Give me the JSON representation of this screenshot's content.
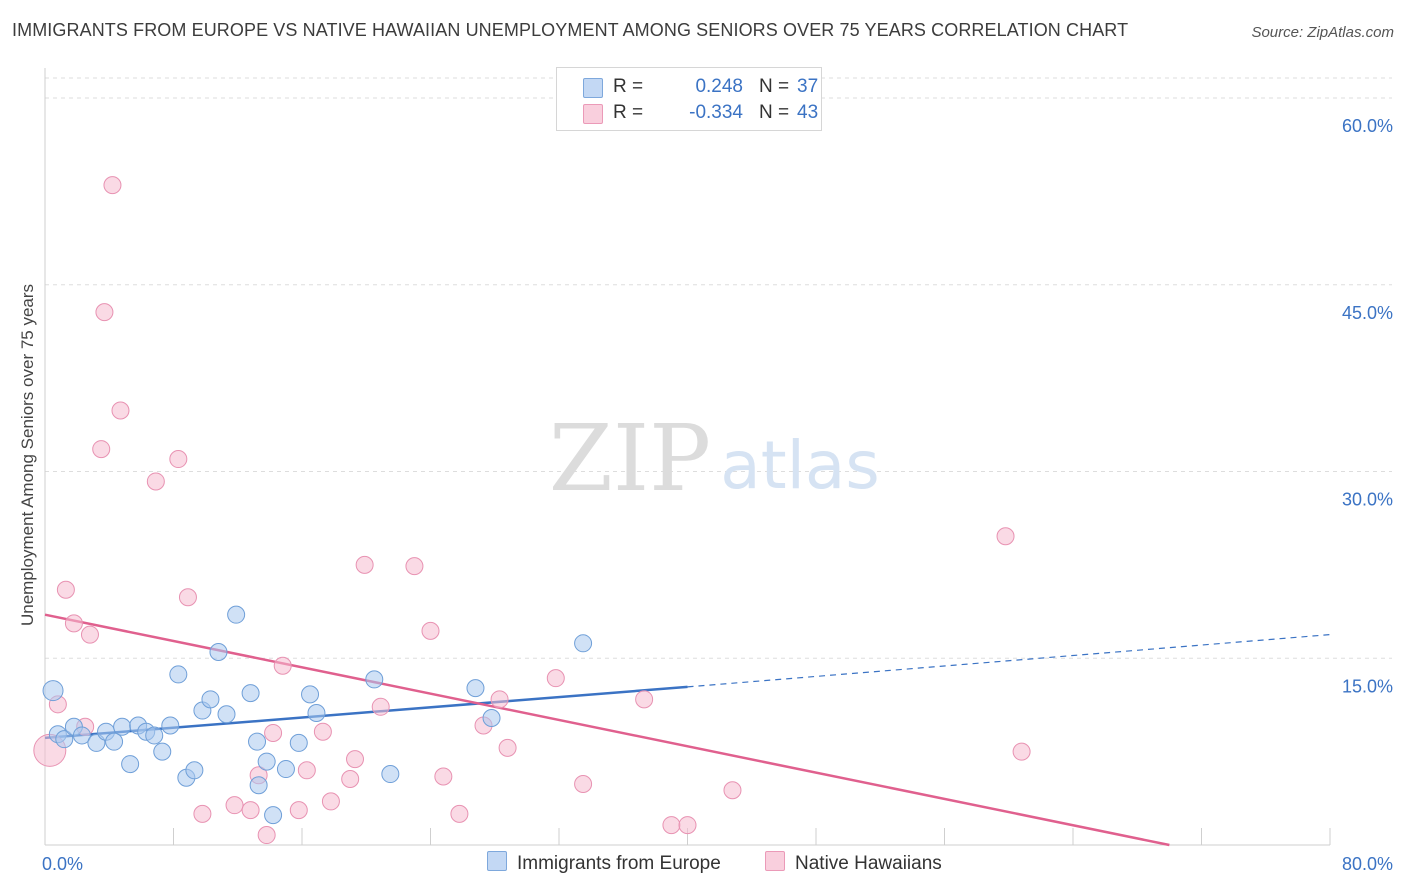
{
  "title": "IMMIGRANTS FROM EUROPE VS NATIVE HAWAIIAN UNEMPLOYMENT AMONG SENIORS OVER 75 YEARS CORRELATION CHART",
  "source": "Source: ZipAtlas.com",
  "watermark": {
    "zip": "ZIP",
    "atlas": "atlas"
  },
  "colors": {
    "blue_fill": "#aac8ee",
    "blue_stroke": "#6f9fd8",
    "blue_line": "#3b73c4",
    "pink_fill": "#f6bcd0",
    "pink_stroke": "#e892b2",
    "pink_line": "#e0608e",
    "axis_text": "#3b73c4",
    "grid": "#dddddd"
  },
  "legend_top": [
    {
      "r_label": "R =",
      "r_value": "0.248",
      "n_label": "N =",
      "n_value": "37"
    },
    {
      "r_label": "R =",
      "r_value": "-0.334",
      "n_label": "N =",
      "n_value": "43"
    }
  ],
  "legend_bottom": [
    "Immigrants from Europe",
    "Native Hawaiians"
  ],
  "chart_data": {
    "type": "scatter",
    "title": "IMMIGRANTS FROM EUROPE VS NATIVE HAWAIIAN UNEMPLOYMENT AMONG SENIORS OVER 75 YEARS CORRELATION CHART",
    "xlabel": "",
    "ylabel": "Unemployment Among Seniors over 75 years",
    "xlim": [
      0,
      80
    ],
    "ylim": [
      0,
      60
    ],
    "x_tick_labels": [
      "0.0%",
      "80.0%"
    ],
    "y_ticks": [
      15,
      30,
      45,
      60
    ],
    "y_tick_labels": [
      "15.0%",
      "30.0%",
      "45.0%",
      "60.0%"
    ],
    "grid": true,
    "series": [
      {
        "name": "Immigrants from Europe",
        "r": 0.248,
        "n": 37,
        "trend": {
          "x0": 0,
          "y0": 8.6,
          "x1": 40,
          "y1": 12.7,
          "dash_to_x": 80,
          "dash_to_y": 16.9
        },
        "points": [
          [
            0.5,
            12.4
          ],
          [
            0.8,
            8.9
          ],
          [
            1.2,
            8.5
          ],
          [
            1.8,
            9.5
          ],
          [
            2.3,
            8.8
          ],
          [
            3.2,
            8.2
          ],
          [
            3.8,
            9.1
          ],
          [
            4.3,
            8.3
          ],
          [
            4.8,
            9.5
          ],
          [
            5.3,
            6.5
          ],
          [
            5.8,
            9.6
          ],
          [
            6.3,
            9.1
          ],
          [
            6.8,
            8.8
          ],
          [
            7.3,
            7.5
          ],
          [
            7.8,
            9.6
          ],
          [
            8.3,
            13.7
          ],
          [
            8.8,
            5.4
          ],
          [
            9.3,
            6.0
          ],
          [
            9.8,
            10.8
          ],
          [
            10.3,
            11.7
          ],
          [
            10.8,
            15.5
          ],
          [
            11.3,
            10.5
          ],
          [
            11.9,
            18.5
          ],
          [
            12.8,
            12.2
          ],
          [
            13.3,
            4.8
          ],
          [
            13.8,
            6.7
          ],
          [
            14.2,
            2.4
          ],
          [
            15.0,
            6.1
          ],
          [
            15.8,
            8.2
          ],
          [
            16.5,
            12.1
          ],
          [
            16.9,
            10.6
          ],
          [
            20.5,
            13.3
          ],
          [
            21.5,
            5.7
          ],
          [
            26.8,
            12.6
          ],
          [
            27.8,
            10.2
          ],
          [
            33.5,
            16.2
          ],
          [
            13.2,
            8.3
          ]
        ]
      },
      {
        "name": "Native Hawaiians",
        "r": -0.334,
        "n": 43,
        "trend": {
          "x0": 0,
          "y0": 18.5,
          "x1": 70,
          "y1": 0
        },
        "points": [
          [
            0.3,
            7.6
          ],
          [
            0.8,
            11.3
          ],
          [
            1.3,
            20.5
          ],
          [
            1.8,
            17.8
          ],
          [
            2.5,
            9.5
          ],
          [
            2.8,
            16.9
          ],
          [
            3.5,
            31.8
          ],
          [
            3.7,
            42.8
          ],
          [
            4.2,
            53.0
          ],
          [
            4.7,
            34.9
          ],
          [
            6.9,
            29.2
          ],
          [
            8.3,
            31.0
          ],
          [
            9.8,
            2.5
          ],
          [
            8.9,
            19.9
          ],
          [
            11.8,
            3.2
          ],
          [
            12.8,
            2.8
          ],
          [
            13.3,
            5.6
          ],
          [
            13.8,
            0.8
          ],
          [
            14.2,
            9.0
          ],
          [
            14.8,
            14.4
          ],
          [
            15.8,
            2.8
          ],
          [
            16.3,
            6.0
          ],
          [
            17.3,
            9.1
          ],
          [
            17.8,
            3.5
          ],
          [
            19.0,
            5.3
          ],
          [
            19.3,
            6.9
          ],
          [
            19.9,
            22.5
          ],
          [
            20.9,
            11.1
          ],
          [
            23.0,
            22.4
          ],
          [
            24.0,
            17.2
          ],
          [
            24.8,
            5.5
          ],
          [
            25.8,
            2.5
          ],
          [
            27.3,
            9.6
          ],
          [
            28.3,
            11.7
          ],
          [
            28.8,
            7.8
          ],
          [
            31.8,
            13.4
          ],
          [
            33.5,
            4.9
          ],
          [
            37.3,
            11.7
          ],
          [
            39.0,
            1.6
          ],
          [
            40.0,
            1.6
          ],
          [
            42.8,
            4.4
          ],
          [
            59.8,
            24.8
          ],
          [
            60.8,
            7.5
          ]
        ]
      }
    ]
  }
}
